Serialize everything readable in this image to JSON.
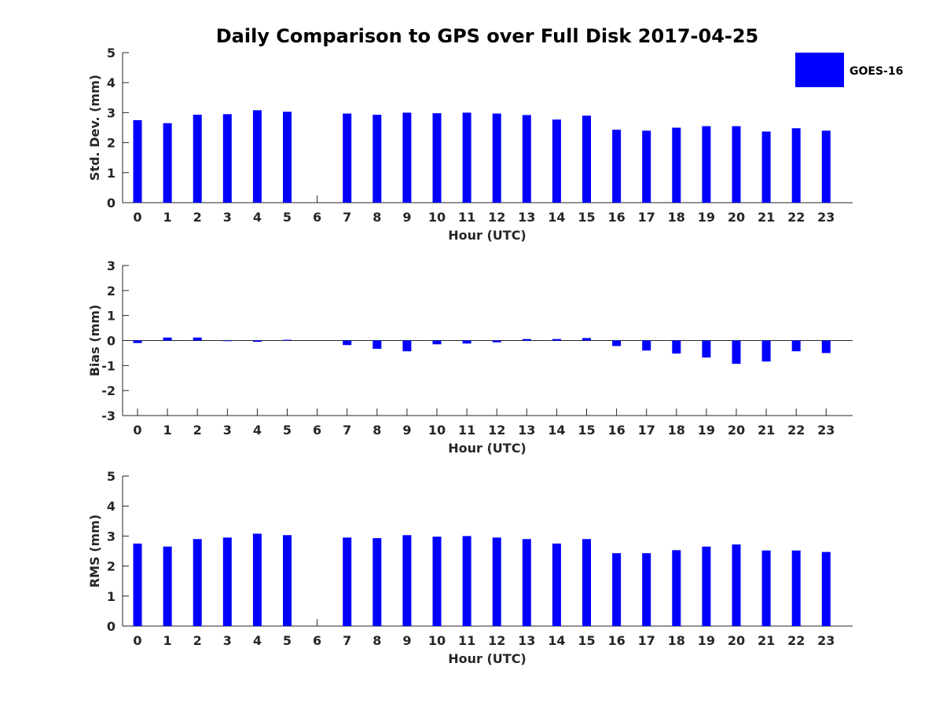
{
  "chart_data": {
    "title": "Daily Comparison to GPS over Full Disk 2017-04-25",
    "type": "bar",
    "bar_color": "#0000ff",
    "legend": {
      "label": "GOES-16",
      "placement": "top-right"
    },
    "categories": [
      "0",
      "1",
      "2",
      "3",
      "4",
      "5",
      "6",
      "7",
      "8",
      "9",
      "10",
      "11",
      "12",
      "13",
      "14",
      "15",
      "16",
      "17",
      "18",
      "19",
      "20",
      "21",
      "22",
      "23"
    ],
    "panels": [
      {
        "key": "std",
        "ylabel": "Std. Dev. (mm)",
        "xlabel": "Hour (UTC)",
        "ylim": [
          0,
          5
        ],
        "yticks": [
          "0",
          "1",
          "2",
          "3",
          "4",
          "5"
        ],
        "values": [
          2.75,
          2.65,
          2.93,
          2.95,
          3.08,
          3.03,
          null,
          2.97,
          2.93,
          3.0,
          2.98,
          3.0,
          2.97,
          2.92,
          2.77,
          2.9,
          2.43,
          2.4,
          2.5,
          2.55,
          2.55,
          2.37,
          2.48,
          2.4
        ]
      },
      {
        "key": "bias",
        "ylabel": "Bias (mm)",
        "xlabel": "Hour (UTC)",
        "ylim": [
          -3,
          3
        ],
        "yticks": [
          "-3",
          "-2",
          "-1",
          "0",
          "1",
          "2",
          "3"
        ],
        "values": [
          -0.1,
          0.12,
          0.12,
          -0.02,
          -0.05,
          0.03,
          null,
          -0.18,
          -0.33,
          -0.43,
          -0.15,
          -0.12,
          -0.07,
          0.06,
          0.06,
          0.1,
          -0.22,
          -0.4,
          -0.52,
          -0.68,
          -0.93,
          -0.84,
          -0.43,
          -0.5
        ]
      },
      {
        "key": "rms",
        "ylabel": "RMS (mm)",
        "xlabel": "Hour (UTC)",
        "ylim": [
          0,
          5
        ],
        "yticks": [
          "0",
          "1",
          "2",
          "3",
          "4",
          "5"
        ],
        "values": [
          2.75,
          2.65,
          2.9,
          2.95,
          3.08,
          3.03,
          null,
          2.95,
          2.93,
          3.03,
          2.98,
          3.0,
          2.95,
          2.9,
          2.75,
          2.9,
          2.43,
          2.43,
          2.53,
          2.65,
          2.72,
          2.52,
          2.52,
          2.47
        ]
      }
    ]
  }
}
